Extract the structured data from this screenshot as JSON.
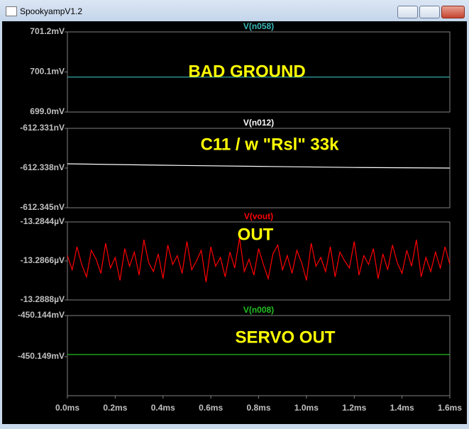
{
  "window": {
    "title": "SpookyampV1.2"
  },
  "chart_data": [
    {
      "type": "line",
      "title": "V(n058)",
      "annotation": "BAD GROUND",
      "x": [
        0,
        1.6
      ],
      "xlim": [
        0,
        1.6
      ],
      "series": [
        {
          "name": "V(n058)",
          "color": "#3cb8b8",
          "values": [
            699.96,
            699.96
          ]
        }
      ],
      "ylim": [
        699.0,
        701.2
      ],
      "yticks": [
        {
          "value": 701.2,
          "label": "701.2mV"
        },
        {
          "value": 700.1,
          "label": "700.1mV"
        },
        {
          "value": 699.0,
          "label": "699.0mV"
        }
      ]
    },
    {
      "type": "line",
      "title": "V(n012)",
      "annotation": "C11 / w \"Rsl\" 33k",
      "x": [
        0,
        0.4,
        0.8,
        1.2,
        1.6
      ],
      "xlim": [
        0,
        1.6
      ],
      "series": [
        {
          "name": "V(n012)",
          "color": "#ffffff",
          "values": [
            -612.33725,
            -612.3375,
            -612.3377,
            -612.3379,
            -612.338
          ]
        }
      ],
      "ylim": [
        -612.345,
        -612.331
      ],
      "yticks": [
        {
          "value": -612.331,
          "label": "-612.331nV"
        },
        {
          "value": -612.338,
          "label": "-612.338nV"
        },
        {
          "value": -612.345,
          "label": "-612.345nV"
        }
      ]
    },
    {
      "type": "line",
      "title": "V(vout)",
      "annotation": "OUT",
      "x": [
        0,
        0.02,
        0.04,
        0.06,
        0.08,
        0.1,
        0.12,
        0.14,
        0.16,
        0.18,
        0.2,
        0.22,
        0.24,
        0.26,
        0.28,
        0.3,
        0.32,
        0.34,
        0.36,
        0.38,
        0.4,
        0.42,
        0.44,
        0.46,
        0.48,
        0.5,
        0.52,
        0.54,
        0.56,
        0.58,
        0.6,
        0.62,
        0.64,
        0.66,
        0.68,
        0.7,
        0.72,
        0.74,
        0.76,
        0.78,
        0.8,
        0.82,
        0.84,
        0.86,
        0.88,
        0.9,
        0.92,
        0.94,
        0.96,
        0.98,
        1.0,
        1.02,
        1.04,
        1.06,
        1.08,
        1.1,
        1.12,
        1.14,
        1.16,
        1.18,
        1.2,
        1.22,
        1.24,
        1.26,
        1.28,
        1.3,
        1.32,
        1.34,
        1.36,
        1.38,
        1.4,
        1.42,
        1.44,
        1.46,
        1.48,
        1.5,
        1.52,
        1.54,
        1.56,
        1.58,
        1.6
      ],
      "xlim": [
        0,
        1.6
      ],
      "series": [
        {
          "name": "V(vout)",
          "color": "#ff0000",
          "values": [
            -13.2863,
            -13.2871,
            -13.2858,
            -13.2868,
            -13.2875,
            -13.286,
            -13.2865,
            -13.2873,
            -13.2856,
            -13.287,
            -13.2864,
            -13.2877,
            -13.2859,
            -13.2869,
            -13.2861,
            -13.2874,
            -13.2854,
            -13.2867,
            -13.2872,
            -13.2862,
            -13.2876,
            -13.2857,
            -13.2868,
            -13.2863,
            -13.2873,
            -13.2855,
            -13.2871,
            -13.2866,
            -13.286,
            -13.2878,
            -13.2858,
            -13.2869,
            -13.2864,
            -13.2875,
            -13.2861,
            -13.287,
            -13.2853,
            -13.2872,
            -13.2865,
            -13.2874,
            -13.2859,
            -13.2868,
            -13.2876,
            -13.2862,
            -13.2857,
            -13.2871,
            -13.2863,
            -13.2873,
            -13.286,
            -13.2867,
            -13.2877,
            -13.2856,
            -13.2869,
            -13.2864,
            -13.2872,
            -13.2858,
            -13.2875,
            -13.2861,
            -13.2866,
            -13.287,
            -13.2855,
            -13.2874,
            -13.2863,
            -13.2868,
            -13.2859,
            -13.2876,
            -13.2862,
            -13.2871,
            -13.2857,
            -13.2867,
            -13.2873,
            -13.286,
            -13.2869,
            -13.2854,
            -13.2875,
            -13.2864,
            -13.2872,
            -13.2861,
            -13.287,
            -13.2858,
            -13.2868
          ]
        }
      ],
      "ylim": [
        -13.2888,
        -13.2844
      ],
      "yticks": [
        {
          "value": -13.2844,
          "label": "-13.2844µV"
        },
        {
          "value": -13.2866,
          "label": "-13.2866µV"
        },
        {
          "value": -13.2888,
          "label": "-13.2888µV"
        }
      ]
    },
    {
      "type": "line",
      "title": "V(n008)",
      "annotation": "SERVO OUT",
      "x": [
        0,
        1.6
      ],
      "xlim": [
        0,
        1.6
      ],
      "series": [
        {
          "name": "V(n008)",
          "color": "#22c022",
          "values": [
            -450.14874,
            -450.14874
          ]
        }
      ],
      "ylim": [
        -450.15374,
        -450.144
      ],
      "yticks": [
        {
          "value": -450.144,
          "label": "-450.144mV"
        },
        {
          "value": -450.149,
          "label": "-450.149mV"
        }
      ],
      "xticks": [
        {
          "value": 0,
          "label": "0.0ms"
        },
        {
          "value": 0.2,
          "label": "0.2ms"
        },
        {
          "value": 0.4,
          "label": "0.4ms"
        },
        {
          "value": 0.6,
          "label": "0.6ms"
        },
        {
          "value": 0.8,
          "label": "0.8ms"
        },
        {
          "value": 1.0,
          "label": "1.0ms"
        },
        {
          "value": 1.2,
          "label": "1.2ms"
        },
        {
          "value": 1.4,
          "label": "1.4ms"
        },
        {
          "value": 1.6,
          "label": "1.6ms"
        }
      ]
    }
  ]
}
